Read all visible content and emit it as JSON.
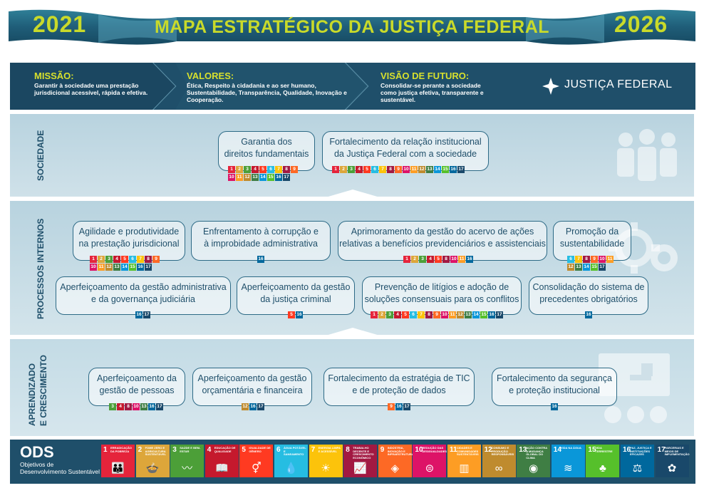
{
  "header": {
    "year_start": "2021",
    "title": "MAPA ESTRATÉGICO DA JUSTIÇA FEDERAL",
    "year_end": "2026"
  },
  "mission_bar": {
    "mission": {
      "title": "MISSÃO:",
      "text": "Garantir à sociedade uma prestação jurisdicional acessível, rápida e efetiva."
    },
    "values": {
      "title": "VALORES:",
      "text": "Ética, Respeito à cidadania e ao ser humano, Sustentabilidade, Transparência, Qualidade, Inovação e  Cooperação."
    },
    "vision": {
      "title": "VISÃO DE FUTURO:",
      "text": "Consolidar-se perante a sociedade como justiça efetiva, transparente e sustentável."
    },
    "logo_text": "JUSTIÇA FEDERAL"
  },
  "sections": {
    "sociedade": "SOCIEDADE",
    "processos": "PROCESSOS INTERNOS",
    "aprendizado_1": "APRENDIZADO",
    "aprendizado_2": "E CRESCIMENTO"
  },
  "objectives": {
    "garantia": {
      "line1": "Garantia dos",
      "line2": "direitos fundamentais",
      "sdgs": [
        "1",
        "2",
        "3",
        "4",
        "5",
        "6",
        "7",
        "8",
        "9",
        "10",
        "11",
        "12",
        "13",
        "14",
        "15",
        "16",
        "17"
      ]
    },
    "fortalecimento_relacao": {
      "line1": "Fortalecimento da relação institucional",
      "line2": "da Justiça Federal com a sociedade",
      "sdgs": [
        "1",
        "2",
        "3",
        "4",
        "5",
        "6",
        "7",
        "8",
        "9",
        "10",
        "11",
        "12",
        "13",
        "14",
        "15",
        "16",
        "17"
      ]
    },
    "agilidade": {
      "line1": "Agilidade e produtividade",
      "line2": "na prestação jurisdicional",
      "sdgs": [
        "1",
        "2",
        "3",
        "4",
        "5",
        "6",
        "7",
        "8",
        "9",
        "10",
        "11",
        "12",
        "13",
        "14",
        "15",
        "16",
        "17"
      ]
    },
    "enfrentamento": {
      "line1": "Enfrentamento à corrupção e",
      "line2": "à improbidade administrativa",
      "sdgs": [
        "16"
      ]
    },
    "aprimoramento": {
      "line1": "Aprimoramento da gestão do acervo de ações",
      "line2": "relativas a benefícios previdenciários e assistenciais",
      "sdgs": [
        "1",
        "2",
        "3",
        "4",
        "5",
        "8",
        "10",
        "11",
        "16"
      ]
    },
    "promocao": {
      "line1": "Promoção da",
      "line2": "sustentabilidade",
      "sdgs": [
        "6",
        "7",
        "8",
        "9",
        "10",
        "11",
        "12",
        "13",
        "14",
        "15",
        "17"
      ]
    },
    "aperf_admin": {
      "line1": "Aperfeiçoamento da gestão administrativa",
      "line2": "e da governança judiciária",
      "sdgs": [
        "16",
        "17"
      ]
    },
    "aperf_criminal": {
      "line1": "Aperfeiçoamento da gestão",
      "line2": "da justiça criminal",
      "sdgs": [
        "5",
        "16"
      ]
    },
    "prevencao": {
      "line1": "Prevenção de litígios e adoção de",
      "line2": "soluções consensuais para os conflitos",
      "sdgs": [
        "1",
        "2",
        "3",
        "4",
        "5",
        "6",
        "7",
        "8",
        "9",
        "10",
        "11",
        "12",
        "13",
        "14",
        "15",
        "16",
        "17"
      ]
    },
    "consolidacao": {
      "line1": "Consolidação do sistema de",
      "line2": "precedentes obrigatórios",
      "sdgs": [
        "16"
      ]
    },
    "pessoas": {
      "line1": "Aperfeiçoamento da",
      "line2": "gestão de pessoas",
      "sdgs": [
        "3",
        "4",
        "8",
        "10",
        "13",
        "16",
        "17"
      ]
    },
    "orcamentaria": {
      "line1": "Aperfeiçoamento da gestão",
      "line2": "orçamentária e financeira",
      "sdgs": [
        "12",
        "16",
        "17"
      ]
    },
    "tic": {
      "line1": "Fortalecimento da estratégia de TIC",
      "line2": "e de proteção de dados",
      "sdgs": [
        "9",
        "16",
        "17"
      ]
    },
    "seguranca": {
      "line1": "Fortalecimento da segurança",
      "line2": "e proteção institucional",
      "sdgs": [
        "16"
      ]
    }
  },
  "ods": {
    "title": "ODS",
    "subtitle_1": "Objetivos de",
    "subtitle_2": "Desenvolvimento Sustentável",
    "tiles": [
      {
        "num": "1",
        "label": "ERRADICAÇÃO DA POBREZA",
        "icon": "👪"
      },
      {
        "num": "2",
        "label": "FOME ZERO E AGRICULTURA SUSTENTÁVEL",
        "icon": "🍲"
      },
      {
        "num": "3",
        "label": "SAÚDE E BEM-ESTAR",
        "icon": "〰"
      },
      {
        "num": "4",
        "label": "EDUCAÇÃO DE QUALIDADE",
        "icon": "📖"
      },
      {
        "num": "5",
        "label": "IGUALDADE DE GÊNERO",
        "icon": "⚥"
      },
      {
        "num": "6",
        "label": "ÁGUA POTÁVEL E SANEAMENTO",
        "icon": "💧"
      },
      {
        "num": "7",
        "label": "ENERGIA LIMPA E ACESSÍVEL",
        "icon": "☀"
      },
      {
        "num": "8",
        "label": "TRABALHO DECENTE E CRESCIMENTO ECONÔMICO",
        "icon": "📈"
      },
      {
        "num": "9",
        "label": "INDÚSTRIA, INOVAÇÃO E INFRAESTRUTURA",
        "icon": "◈"
      },
      {
        "num": "10",
        "label": "REDUÇÃO DAS DESIGUALDADES",
        "icon": "⊜"
      },
      {
        "num": "11",
        "label": "CIDADES E COMUNIDADES SUSTENTÁVEIS",
        "icon": "▥"
      },
      {
        "num": "12",
        "label": "CONSUMO E PRODUÇÃO RESPONSÁVEIS",
        "icon": "∞"
      },
      {
        "num": "13",
        "label": "AÇÃO CONTRA A MUDANÇA GLOBAL DO CLIMA",
        "icon": "◉"
      },
      {
        "num": "14",
        "label": "VIDA NA ÁGUA",
        "icon": "≋"
      },
      {
        "num": "15",
        "label": "VIDA TERRESTRE",
        "icon": "♣"
      },
      {
        "num": "16",
        "label": "PAZ, JUSTIÇA E INSTITUIÇÕES EFICAZES",
        "icon": "⚖"
      },
      {
        "num": "17",
        "label": "PARCERIAS E MEIOS DE IMPLEMENTAÇÃO",
        "icon": "✿"
      }
    ]
  },
  "sdg_colors": {
    "1": "#e5243b",
    "2": "#dda63a",
    "3": "#4c9f38",
    "4": "#c5192d",
    "5": "#ff3a21",
    "6": "#26bde2",
    "7": "#fcc30b",
    "8": "#a21942",
    "9": "#fd6925",
    "10": "#dd1367",
    "11": "#fd9d24",
    "12": "#bf8b2e",
    "13": "#3f7e44",
    "14": "#0a97d9",
    "15": "#56c02b",
    "16": "#00689d",
    "17": "#19486a"
  },
  "colors": {
    "title_yellow": "#c9da2a",
    "navy": "#1f4f6a"
  }
}
